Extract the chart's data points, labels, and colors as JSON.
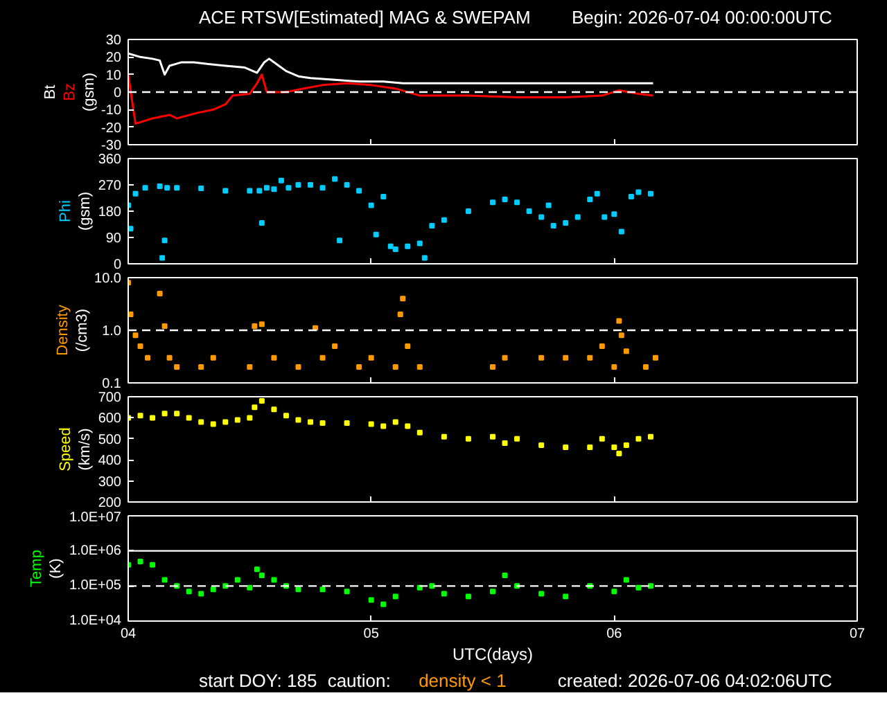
{
  "chart_data": [
    {
      "type": "line",
      "title": "ACE RTSW[Estimated] MAG & SWEPAM",
      "subtitle": "Begin: 2026-07-04 00:00:00UTC",
      "ylabel": "(gsm)",
      "xlim": [
        4,
        7
      ],
      "xticks": [
        4,
        5,
        6,
        7
      ],
      "tick_labels": "y",
      "ylim": [
        -30,
        30
      ],
      "yticks": [
        -30,
        -20,
        -10,
        0,
        10,
        20,
        30
      ],
      "grid": false,
      "ref_lines": [
        {
          "axis": "y",
          "value": 0,
          "label": null,
          "color": "#ffffff",
          "line_style": "dashed"
        }
      ],
      "series": [
        {
          "name": "Bt",
          "color": "#ffffff",
          "x": [
            4.0,
            4.05,
            4.1,
            4.13,
            4.15,
            4.17,
            4.22,
            4.27,
            4.33,
            4.4,
            4.48,
            4.53,
            4.56,
            4.58,
            4.61,
            4.65,
            4.7,
            4.75,
            4.85,
            4.95,
            5.05,
            5.13,
            5.3,
            5.5,
            5.7,
            5.9,
            6.1,
            6.16
          ],
          "values": [
            22,
            20,
            19,
            18,
            10,
            15,
            17,
            17,
            16,
            15,
            14,
            11,
            17,
            19,
            16,
            12,
            9,
            8,
            7,
            6,
            6,
            5,
            5,
            5,
            5,
            5,
            5,
            5
          ]
        },
        {
          "name": "Bz",
          "color": "#ff0000",
          "x": [
            4.0,
            4.03,
            4.1,
            4.17,
            4.2,
            4.28,
            4.35,
            4.4,
            4.43,
            4.5,
            4.53,
            4.55,
            4.57,
            4.65,
            4.72,
            4.8,
            4.9,
            5.0,
            5.1,
            5.2,
            5.4,
            5.6,
            5.8,
            5.95,
            6.02,
            6.1,
            6.16
          ],
          "values": [
            10,
            -18,
            -15,
            -13,
            -15,
            -12,
            -10,
            -7,
            -2,
            -1,
            5,
            10,
            0,
            0,
            2,
            4,
            5,
            4,
            2,
            -2,
            -2,
            -3,
            -3,
            -2,
            1,
            -1,
            -2
          ]
        }
      ]
    },
    {
      "type": "scatter",
      "ylabel": "(gsm)",
      "xlim": [
        4,
        7
      ],
      "xticks": [
        4,
        5,
        6,
        7
      ],
      "tick_labels": "y",
      "ylim": [
        0,
        360
      ],
      "yticks": [
        0,
        90,
        180,
        270,
        360
      ],
      "grid": false,
      "marker": "square",
      "series": [
        {
          "name": "Phi",
          "color": "#00ccff",
          "x": [
            4.0,
            4.01,
            4.03,
            4.07,
            4.13,
            4.14,
            4.15,
            4.16,
            4.2,
            4.3,
            4.4,
            4.5,
            4.54,
            4.55,
            4.57,
            4.6,
            4.63,
            4.66,
            4.7,
            4.75,
            4.8,
            4.85,
            4.87,
            4.9,
            4.95,
            5.0,
            5.02,
            5.05,
            5.08,
            5.1,
            5.15,
            5.2,
            5.22,
            5.25,
            5.3,
            5.4,
            5.5,
            5.55,
            5.6,
            5.65,
            5.7,
            5.73,
            5.75,
            5.8,
            5.85,
            5.9,
            5.93,
            5.96,
            6.0,
            6.03,
            6.07,
            6.1,
            6.15
          ],
          "values": [
            200,
            120,
            240,
            260,
            265,
            20,
            80,
            260,
            260,
            258,
            250,
            250,
            250,
            140,
            260,
            255,
            285,
            260,
            270,
            270,
            260,
            290,
            80,
            270,
            250,
            200,
            100,
            230,
            60,
            50,
            60,
            70,
            20,
            130,
            150,
            180,
            210,
            220,
            210,
            180,
            160,
            200,
            130,
            140,
            160,
            220,
            240,
            160,
            170,
            110,
            230,
            245,
            240
          ]
        }
      ]
    },
    {
      "type": "scatter",
      "ylabel": "(/cm3)",
      "log": "y",
      "xlim": [
        4,
        7
      ],
      "xticks": [
        4,
        5,
        6,
        7
      ],
      "tick_labels": "y",
      "ylim": [
        0.1,
        10
      ],
      "yticks": [
        {
          "value": 0.1,
          "label": "0.1"
        },
        {
          "value": 1,
          "label": "1.0"
        },
        {
          "value": 10,
          "label": "10.0"
        }
      ],
      "grid": false,
      "marker": "square",
      "ref_lines": [
        {
          "axis": "y",
          "value": 1,
          "label": null,
          "color": "#ffffff",
          "line_style": "dashed"
        }
      ],
      "series": [
        {
          "name": "Density",
          "color": "#ff9900",
          "x": [
            4.0,
            4.01,
            4.03,
            4.05,
            4.08,
            4.13,
            4.15,
            4.17,
            4.2,
            4.3,
            4.35,
            4.5,
            4.52,
            4.55,
            4.6,
            4.7,
            4.77,
            4.8,
            4.85,
            4.95,
            5.0,
            5.1,
            5.12,
            5.13,
            5.15,
            5.2,
            5.5,
            5.55,
            5.7,
            5.8,
            5.9,
            5.95,
            6.0,
            6.02,
            6.03,
            6.05,
            6.13,
            6.17
          ],
          "values": [
            8,
            2,
            0.8,
            0.5,
            0.3,
            5,
            1.2,
            0.3,
            0.2,
            0.2,
            0.3,
            0.2,
            1.2,
            1.3,
            0.3,
            0.2,
            1.1,
            0.3,
            0.5,
            0.2,
            0.3,
            0.2,
            2,
            4,
            0.5,
            0.2,
            0.2,
            0.3,
            0.3,
            0.3,
            0.3,
            0.5,
            0.2,
            1.5,
            0.8,
            0.4,
            0.2,
            0.3
          ]
        }
      ]
    },
    {
      "type": "scatter",
      "ylabel": "(km/s)",
      "xlim": [
        4,
        7
      ],
      "xticks": [
        4,
        5,
        6,
        7
      ],
      "tick_labels": "y",
      "ylim": [
        200,
        700
      ],
      "yticks": [
        200,
        300,
        400,
        500,
        600,
        700
      ],
      "grid": false,
      "marker": "square",
      "series": [
        {
          "name": "Speed",
          "color": "#ffff00",
          "x": [
            4.0,
            4.05,
            4.1,
            4.15,
            4.2,
            4.25,
            4.3,
            4.35,
            4.4,
            4.45,
            4.5,
            4.52,
            4.55,
            4.6,
            4.65,
            4.7,
            4.75,
            4.8,
            4.9,
            5.0,
            5.05,
            5.1,
            5.15,
            5.2,
            5.3,
            5.4,
            5.5,
            5.55,
            5.6,
            5.7,
            5.8,
            5.9,
            5.95,
            6.0,
            6.02,
            6.05,
            6.1,
            6.15
          ],
          "values": [
            600,
            610,
            600,
            620,
            620,
            600,
            580,
            570,
            580,
            590,
            600,
            650,
            680,
            640,
            610,
            590,
            580,
            575,
            575,
            570,
            560,
            580,
            560,
            530,
            510,
            500,
            510,
            480,
            500,
            470,
            460,
            460,
            500,
            460,
            430,
            470,
            500,
            510
          ]
        }
      ]
    },
    {
      "type": "scatter",
      "ylabel": "(K)",
      "xlabel": "UTC(days)",
      "log": "y",
      "xlim": [
        4,
        7
      ],
      "xticks": [
        {
          "value": 4,
          "label": "04"
        },
        {
          "value": 5,
          "label": "05"
        },
        {
          "value": 6,
          "label": "06"
        },
        {
          "value": 7,
          "label": "07"
        }
      ],
      "ylim": [
        10000,
        10000000
      ],
      "yticks": [
        {
          "value": 10000,
          "label": "1.0E+04"
        },
        {
          "value": 100000,
          "label": "1.0E+05"
        },
        {
          "value": 1000000,
          "label": "1.0E+06"
        },
        {
          "value": 10000000,
          "label": "1.0E+07"
        }
      ],
      "grid": false,
      "marker": "square",
      "ref_lines": [
        {
          "axis": "y",
          "value": 1000000,
          "label": null,
          "color": "#ffffff",
          "line_style": "solid"
        },
        {
          "axis": "y",
          "value": 100000,
          "label": null,
          "color": "#ffffff",
          "line_style": "dashed"
        }
      ],
      "annotations": [
        "start DOY: 185",
        "caution:",
        "density < 1",
        "created: 2026-07-06 04:02:06UTC"
      ],
      "series": [
        {
          "name": "Temp",
          "color": "#00ff00",
          "x": [
            4.0,
            4.05,
            4.1,
            4.15,
            4.2,
            4.25,
            4.3,
            4.35,
            4.4,
            4.45,
            4.5,
            4.53,
            4.55,
            4.6,
            4.65,
            4.7,
            4.8,
            4.9,
            5.0,
            5.05,
            5.1,
            5.2,
            5.25,
            5.3,
            5.4,
            5.5,
            5.55,
            5.6,
            5.7,
            5.8,
            5.9,
            6.0,
            6.05,
            6.1,
            6.15
          ],
          "values": [
            400000,
            500000,
            400000,
            150000,
            100000,
            70000,
            60000,
            80000,
            100000,
            150000,
            90000,
            300000,
            200000,
            150000,
            100000,
            80000,
            80000,
            70000,
            40000,
            30000,
            50000,
            90000,
            100000,
            60000,
            50000,
            70000,
            200000,
            100000,
            60000,
            50000,
            100000,
            70000,
            150000,
            90000,
            100000
          ]
        }
      ]
    }
  ]
}
